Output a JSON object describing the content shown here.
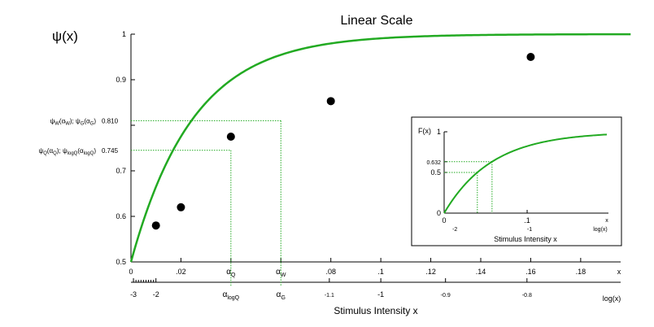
{
  "chart_data": [
    {
      "type": "line",
      "title": "Linear Scale",
      "ylabel": "ψ(x)",
      "xlabel": "Stimulus Intensity x",
      "xlim": [
        0,
        0.2
      ],
      "ylim": [
        0.5,
        1
      ],
      "x_ticks": [
        {
          "v": 0,
          "label": "0"
        },
        {
          "v": 0.02,
          "label": ".02"
        },
        {
          "v": 0.04,
          "label": "α",
          "sub": "Q"
        },
        {
          "v": 0.06,
          "label": "α",
          "sub": "W"
        },
        {
          "v": 0.08,
          "label": ".08"
        },
        {
          "v": 0.1,
          "label": ".1"
        },
        {
          "v": 0.12,
          "label": ".12"
        },
        {
          "v": 0.14,
          "label": ".14"
        },
        {
          "v": 0.16,
          "label": ".16"
        },
        {
          "v": 0.18,
          "label": ".18"
        }
      ],
      "x_axis_end_label": "x",
      "y_ticks": [
        {
          "v": 0.5,
          "label": "0.5"
        },
        {
          "v": 0.6,
          "label": "0.6"
        },
        {
          "v": 0.7,
          "label": "0.7"
        },
        {
          "v": 0.8,
          "label": ""
        },
        {
          "v": 0.9,
          "label": "0.9"
        },
        {
          "v": 1.0,
          "label": "1"
        }
      ],
      "log_axis": {
        "label": "log(x)",
        "ticks": [
          {
            "x": 0.001,
            "label": "-3"
          },
          {
            "x": 0.01,
            "label": "-2"
          },
          {
            "x": 0.0794,
            "label": "-1.1"
          },
          {
            "x": 0.1,
            "label": "-1"
          },
          {
            "x": 0.1259,
            "label": "-0.9"
          },
          {
            "x": 0.1585,
            "label": "-0.8"
          }
        ],
        "minor_ticks": [
          0.002,
          0.003,
          0.004,
          0.005,
          0.006,
          0.007,
          0.008,
          0.009
        ],
        "alpha_labels": [
          {
            "x": 0.04,
            "label": "α",
            "sub": "logQ"
          },
          {
            "x": 0.06,
            "label": "α",
            "sub": "G"
          }
        ]
      },
      "series": [
        {
          "kind": "curve",
          "color": "#22aa22",
          "params": {
            "gamma": 0.5,
            "delta": 0,
            "lambda": 0.025
          }
        },
        {
          "kind": "points",
          "color": "#000000",
          "points": [
            {
              "x": 0.01,
              "y": 0.58
            },
            {
              "x": 0.02,
              "y": 0.62
            },
            {
              "x": 0.04,
              "y": 0.775
            },
            {
              "x": 0.08,
              "y": 0.853
            },
            {
              "x": 0.16,
              "y": 0.95
            }
          ]
        }
      ],
      "annotations": [
        {
          "x": 0.06,
          "y": 0.81,
          "value_label": "0.810",
          "parts": [
            {
              "t": "ψ"
            },
            {
              "t": "W",
              "sub": true
            },
            {
              "t": "(α"
            },
            {
              "t": "W",
              "sub": true
            },
            {
              "t": "); ψ"
            },
            {
              "t": "G",
              "sub": true
            },
            {
              "t": "(α"
            },
            {
              "t": "G",
              "sub": true
            },
            {
              "t": ")"
            }
          ]
        },
        {
          "x": 0.04,
          "y": 0.745,
          "value_label": "0.745",
          "parts": [
            {
              "t": "ψ"
            },
            {
              "t": "Q",
              "sub": true
            },
            {
              "t": "(α"
            },
            {
              "t": "Q",
              "sub": true
            },
            {
              "t": "); ψ"
            },
            {
              "t": "logQ",
              "sub": true
            },
            {
              "t": "(α"
            },
            {
              "t": "logQ",
              "sub": true
            },
            {
              "t": ")"
            }
          ]
        }
      ]
    },
    {
      "type": "line",
      "title": "",
      "ylabel": "F(x)",
      "xlabel": "Stimulus Intensity x",
      "xlim": [
        0,
        0.2
      ],
      "ylim": [
        0,
        1
      ],
      "x_ticks": [
        {
          "v": 0,
          "label": "0"
        },
        {
          "v": 0.1,
          "label": ".1"
        }
      ],
      "x_axis_end_label": "x",
      "y_ticks": [
        {
          "v": 0,
          "label": "0"
        },
        {
          "v": 0.5,
          "label": "0.5"
        },
        {
          "v": 0.632,
          "label": "0.632"
        },
        {
          "v": 1,
          "label": "1"
        }
      ],
      "log_axis": {
        "label": "log(x)",
        "ticks": [
          {
            "x": 0.01,
            "label": "-2"
          },
          {
            "x": 0.1,
            "label": "-1"
          }
        ]
      },
      "series": [
        {
          "kind": "curve",
          "color": "#22aa22",
          "params": {
            "lambda": 0.0577
          }
        }
      ],
      "guides": [
        {
          "x": 0.04,
          "y": 0.5
        },
        {
          "x": 0.0577,
          "y": 0.632
        }
      ]
    }
  ]
}
